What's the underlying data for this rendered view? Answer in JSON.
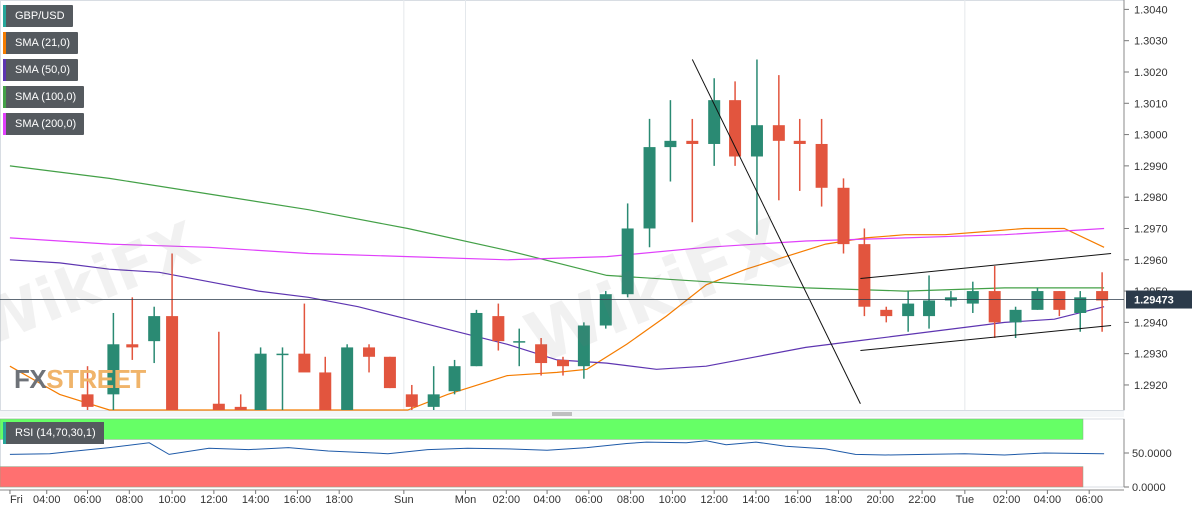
{
  "legend": [
    {
      "label": "GBP/USD",
      "color": "#26a69a"
    },
    {
      "label": "SMA (21,0)",
      "color": "#f57c00"
    },
    {
      "label": "SMA (50,0)",
      "color": "#5e35b1"
    },
    {
      "label": "SMA (100,0)",
      "color": "#43a047"
    },
    {
      "label": "SMA (200,0)",
      "color": "#e040fb"
    }
  ],
  "rsi_legend": {
    "label": "RSI (14,70,30,1)",
    "color": "#26a69a"
  },
  "watermark": {
    "text": "WikiFX"
  },
  "logo": {
    "part1": "FX",
    "part2": "STREET"
  },
  "price_tag": {
    "label": "1.29473",
    "value": 1.29473
  },
  "chart_data": [
    {
      "type": "candlestick",
      "title": "GBP/USD",
      "y_ticks": [
        "1.3040",
        "1.3030",
        "1.3020",
        "1.3010",
        "1.3000",
        "1.2990",
        "1.2980",
        "1.2970",
        "1.2960",
        "1.2950",
        "1.2940",
        "1.2930",
        "1.2920"
      ],
      "ylim": [
        1.2912,
        1.3043
      ],
      "x_ticks": [
        "Fri",
        "04:00",
        "06:00",
        "08:00",
        "10:00",
        "12:00",
        "14:00",
        "16:00",
        "18:00",
        "Sun",
        "Mon",
        "02:00",
        "04:00",
        "06:00",
        "08:00",
        "10:00",
        "12:00",
        "14:00",
        "16:00",
        "18:00",
        "20:00",
        "22:00",
        "Tue",
        "02:00",
        "04:00",
        "06:00"
      ],
      "x_tick_index": [
        0,
        3.7,
        7.8,
        12,
        16.3,
        20.5,
        24.7,
        28.9,
        33.1,
        39.6,
        45.8,
        49.9,
        54,
        58.2,
        62.4,
        66.6,
        70.8,
        75,
        79.2,
        83.3,
        87.5,
        91.7,
        96,
        100.2,
        104.3,
        108.5
      ],
      "last_price": 1.29473,
      "candles": [
        {
          "i": 7.8,
          "o": 1.2917,
          "h": 1.2926,
          "l": 1.2912,
          "c": 1.2913
        },
        {
          "i": 10.4,
          "o": 1.2917,
          "h": 1.2943,
          "l": 1.2912,
          "c": 1.2933
        },
        {
          "i": 12.3,
          "o": 1.2933,
          "h": 1.2948,
          "l": 1.2928,
          "c": 1.2932
        },
        {
          "i": 14.5,
          "o": 1.2934,
          "h": 1.2945,
          "l": 1.2927,
          "c": 1.2942
        },
        {
          "i": 16.3,
          "o": 1.2942,
          "h": 1.2962,
          "l": 1.2912,
          "c": 1.2912
        },
        {
          "i": 21.0,
          "o": 1.2914,
          "h": 1.2937,
          "l": 1.2912,
          "c": 1.2912
        },
        {
          "i": 23.2,
          "o": 1.2913,
          "h": 1.2917,
          "l": 1.2912,
          "c": 1.2912
        },
        {
          "i": 25.2,
          "o": 1.2912,
          "h": 1.2932,
          "l": 1.2912,
          "c": 1.293
        },
        {
          "i": 27.4,
          "o": 1.293,
          "h": 1.2932,
          "l": 1.2912,
          "c": 1.293
        },
        {
          "i": 29.6,
          "o": 1.293,
          "h": 1.2946,
          "l": 1.2925,
          "c": 1.2924
        },
        {
          "i": 31.7,
          "o": 1.2924,
          "h": 1.2929,
          "l": 1.2912,
          "c": 1.2912
        },
        {
          "i": 33.9,
          "o": 1.2912,
          "h": 1.2933,
          "l": 1.2912,
          "c": 1.2932
        },
        {
          "i": 36.1,
          "o": 1.2932,
          "h": 1.2933,
          "l": 1.2924,
          "c": 1.2929
        },
        {
          "i": 38.2,
          "o": 1.2929,
          "h": 1.2929,
          "l": 1.2919,
          "c": 1.2919
        },
        {
          "i": 40.4,
          "o": 1.2917,
          "h": 1.292,
          "l": 1.2912,
          "c": 1.2913
        },
        {
          "i": 42.6,
          "o": 1.2913,
          "h": 1.2926,
          "l": 1.2912,
          "c": 1.2917
        },
        {
          "i": 44.7,
          "o": 1.2918,
          "h": 1.2928,
          "l": 1.2917,
          "c": 1.2926
        },
        {
          "i": 46.9,
          "o": 1.2926,
          "h": 1.2944,
          "l": 1.2926,
          "c": 1.2943
        },
        {
          "i": 49.1,
          "o": 1.2942,
          "h": 1.2946,
          "l": 1.2931,
          "c": 1.2934
        },
        {
          "i": 51.2,
          "o": 1.2934,
          "h": 1.2938,
          "l": 1.2926,
          "c": 1.2934
        },
        {
          "i": 53.4,
          "o": 1.2933,
          "h": 1.2935,
          "l": 1.2923,
          "c": 1.2927
        },
        {
          "i": 55.6,
          "o": 1.2928,
          "h": 1.2929,
          "l": 1.2923,
          "c": 1.2926
        },
        {
          "i": 57.7,
          "o": 1.2926,
          "h": 1.294,
          "l": 1.2922,
          "c": 1.2939
        },
        {
          "i": 59.9,
          "o": 1.2939,
          "h": 1.295,
          "l": 1.2938,
          "c": 1.2949
        },
        {
          "i": 62.1,
          "o": 1.2949,
          "h": 1.2978,
          "l": 1.2948,
          "c": 1.297
        },
        {
          "i": 64.3,
          "o": 1.297,
          "h": 1.3005,
          "l": 1.2964,
          "c": 1.2996
        },
        {
          "i": 66.4,
          "o": 1.2996,
          "h": 1.3011,
          "l": 1.2985,
          "c": 1.2998
        },
        {
          "i": 68.6,
          "o": 1.2998,
          "h": 1.3005,
          "l": 1.2972,
          "c": 1.2997
        },
        {
          "i": 70.8,
          "o": 1.2997,
          "h": 1.3018,
          "l": 1.299,
          "c": 1.3011
        },
        {
          "i": 72.9,
          "o": 1.3011,
          "h": 1.3017,
          "l": 1.299,
          "c": 1.2993
        },
        {
          "i": 75.1,
          "o": 1.2993,
          "h": 1.3024,
          "l": 1.2968,
          "c": 1.3003
        },
        {
          "i": 77.3,
          "o": 1.3003,
          "h": 1.3019,
          "l": 1.2979,
          "c": 1.2998
        },
        {
          "i": 79.4,
          "o": 1.2998,
          "h": 1.3005,
          "l": 1.2982,
          "c": 1.2997
        },
        {
          "i": 81.6,
          "o": 1.2997,
          "h": 1.3005,
          "l": 1.2977,
          "c": 1.2983
        },
        {
          "i": 83.8,
          "o": 1.2983,
          "h": 1.2986,
          "l": 1.2962,
          "c": 1.2965
        },
        {
          "i": 85.9,
          "o": 1.2965,
          "h": 1.297,
          "l": 1.2942,
          "c": 1.2945
        },
        {
          "i": 88.1,
          "o": 1.2944,
          "h": 1.2945,
          "l": 1.294,
          "c": 1.2942
        },
        {
          "i": 90.3,
          "o": 1.2942,
          "h": 1.295,
          "l": 1.2937,
          "c": 1.2946
        },
        {
          "i": 92.4,
          "o": 1.2942,
          "h": 1.2955,
          "l": 1.2938,
          "c": 1.2947
        },
        {
          "i": 94.6,
          "o": 1.2947,
          "h": 1.295,
          "l": 1.2945,
          "c": 1.2948
        },
        {
          "i": 96.8,
          "o": 1.2946,
          "h": 1.2953,
          "l": 1.2943,
          "c": 1.295
        },
        {
          "i": 99.0,
          "o": 1.295,
          "h": 1.2958,
          "l": 1.2935,
          "c": 1.294
        },
        {
          "i": 101.1,
          "o": 1.294,
          "h": 1.2945,
          "l": 1.2935,
          "c": 1.2944
        },
        {
          "i": 103.3,
          "o": 1.2944,
          "h": 1.2951,
          "l": 1.2944,
          "c": 1.295
        },
        {
          "i": 105.5,
          "o": 1.295,
          "h": 1.295,
          "l": 1.2942,
          "c": 1.2944
        },
        {
          "i": 107.6,
          "o": 1.2943,
          "h": 1.295,
          "l": 1.2937,
          "c": 1.2948
        },
        {
          "i": 109.8,
          "o": 1.295,
          "h": 1.2956,
          "l": 1.2937,
          "c": 1.2947
        }
      ],
      "sma": [
        {
          "name": "SMA (21,0)",
          "color": "#f57c00",
          "points": [
            [
              0,
              1.2926
            ],
            [
              5,
              1.2917
            ],
            [
              10,
              1.2912
            ],
            [
              40,
              1.2912
            ],
            [
              44,
              1.2917
            ],
            [
              50,
              1.2923
            ],
            [
              55,
              1.2924
            ],
            [
              58,
              1.2925
            ],
            [
              62,
              1.2933
            ],
            [
              66,
              1.2942
            ],
            [
              70,
              1.2952
            ],
            [
              74,
              1.2957
            ],
            [
              78,
              1.2961
            ],
            [
              82,
              1.2965
            ],
            [
              86,
              1.2967
            ],
            [
              90,
              1.2968
            ],
            [
              94,
              1.2968
            ],
            [
              98,
              1.2969
            ],
            [
              102,
              1.297
            ],
            [
              106,
              1.297
            ],
            [
              110,
              1.2964
            ]
          ]
        },
        {
          "name": "SMA (50,0)",
          "color": "#5e35b1",
          "points": [
            [
              0,
              1.296
            ],
            [
              5,
              1.2959
            ],
            [
              10,
              1.2957
            ],
            [
              15,
              1.2956
            ],
            [
              20,
              1.2953
            ],
            [
              25,
              1.295
            ],
            [
              30,
              1.2948
            ],
            [
              35,
              1.2945
            ],
            [
              40,
              1.2941
            ],
            [
              45,
              1.2937
            ],
            [
              50,
              1.2933
            ],
            [
              55,
              1.2928
            ],
            [
              60,
              1.2927
            ],
            [
              65,
              1.2925
            ],
            [
              70,
              1.2926
            ],
            [
              75,
              1.2929
            ],
            [
              80,
              1.2932
            ],
            [
              85,
              1.2934
            ],
            [
              90,
              1.2936
            ],
            [
              95,
              1.2938
            ],
            [
              100,
              1.294
            ],
            [
              105,
              1.2941
            ],
            [
              110,
              1.2945
            ]
          ]
        },
        {
          "name": "SMA (100,0)",
          "color": "#43a047",
          "points": [
            [
              0,
              1.299
            ],
            [
              10,
              1.2986
            ],
            [
              20,
              1.2981
            ],
            [
              30,
              1.2976
            ],
            [
              40,
              1.297
            ],
            [
              50,
              1.2963
            ],
            [
              60,
              1.2955
            ],
            [
              70,
              1.2953
            ],
            [
              80,
              1.2951
            ],
            [
              90,
              1.295
            ],
            [
              100,
              1.2951
            ],
            [
              110,
              1.2951
            ]
          ]
        },
        {
          "name": "SMA (200,0)",
          "color": "#e040fb",
          "points": [
            [
              0,
              1.2967
            ],
            [
              10,
              1.2965
            ],
            [
              20,
              1.2964
            ],
            [
              30,
              1.2962
            ],
            [
              40,
              1.2961
            ],
            [
              50,
              1.296
            ],
            [
              60,
              1.2961
            ],
            [
              70,
              1.2964
            ],
            [
              80,
              1.2966
            ],
            [
              90,
              1.2967
            ],
            [
              100,
              1.2968
            ],
            [
              110,
              1.297
            ]
          ]
        }
      ],
      "annotations": [
        {
          "kind": "trendline",
          "points": [
            [
              68.6,
              1.3024
            ],
            [
              85.5,
              1.2914
            ]
          ]
        },
        {
          "kind": "trendline",
          "points": [
            [
              85.5,
              1.2954
            ],
            [
              110.7,
              1.2962
            ]
          ]
        },
        {
          "kind": "trendline",
          "points": [
            [
              85.5,
              1.2931
            ],
            [
              110.7,
              1.2939
            ]
          ]
        }
      ]
    },
    {
      "type": "line",
      "title": "RSI (14,70,30,1)",
      "y_ticks": [
        "50.0000",
        "0.0000"
      ],
      "ylim": [
        0,
        100
      ],
      "zones": [
        {
          "from": 70,
          "to": 100,
          "color": "#66ff66"
        },
        {
          "from": 0,
          "to": 30,
          "color": "#ff7070"
        }
      ],
      "series": [
        {
          "name": "RSI (14,70,30,1)",
          "color": "#1e5aa8",
          "points": [
            [
              0,
              48
            ],
            [
              4,
              49
            ],
            [
              6,
              52
            ],
            [
              10,
              58
            ],
            [
              14,
              65
            ],
            [
              16,
              48
            ],
            [
              20,
              57
            ],
            [
              24,
              55
            ],
            [
              28,
              58
            ],
            [
              32,
              53
            ],
            [
              38,
              49
            ],
            [
              42,
              55
            ],
            [
              46,
              57
            ],
            [
              50,
              56
            ],
            [
              54,
              54
            ],
            [
              58,
              58
            ],
            [
              62,
              64
            ],
            [
              64,
              66
            ],
            [
              68,
              65
            ],
            [
              70,
              68
            ],
            [
              72,
              62
            ],
            [
              75,
              66
            ],
            [
              78,
              60
            ],
            [
              82,
              56
            ],
            [
              85,
              48
            ],
            [
              88,
              47
            ],
            [
              92,
              48
            ],
            [
              96,
              49
            ],
            [
              100,
              47
            ],
            [
              104,
              50
            ],
            [
              110,
              49
            ]
          ]
        }
      ]
    }
  ]
}
